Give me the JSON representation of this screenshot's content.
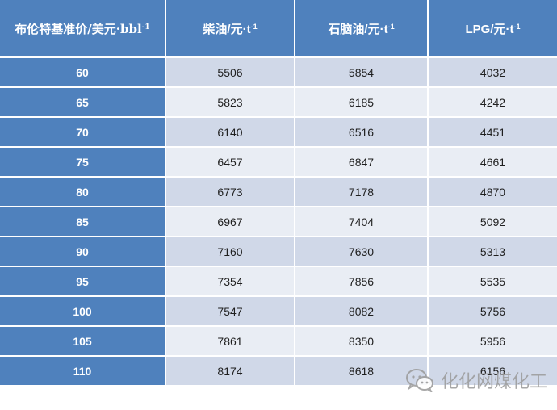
{
  "table": {
    "headers": [
      {
        "text": "布伦特基准价/美元·bbl",
        "sup": "-1"
      },
      {
        "text": "柴油/元·t",
        "sup": "-1"
      },
      {
        "text": "石脑油/元·t",
        "sup": "-1"
      },
      {
        "text": "LPG/元·t",
        "sup": "-1"
      }
    ],
    "rows": [
      [
        "60",
        "5506",
        "5854",
        "4032"
      ],
      [
        "65",
        "5823",
        "6185",
        "4242"
      ],
      [
        "70",
        "6140",
        "6516",
        "4451"
      ],
      [
        "75",
        "6457",
        "6847",
        "4661"
      ],
      [
        "80",
        "6773",
        "7178",
        "4870"
      ],
      [
        "85",
        "6967",
        "7404",
        "5092"
      ],
      [
        "90",
        "7160",
        "7630",
        "5313"
      ],
      [
        "95",
        "7354",
        "7856",
        "5535"
      ],
      [
        "100",
        "7547",
        "8082",
        "5756"
      ],
      [
        "105",
        "7861",
        "8350",
        "5956"
      ],
      [
        "110",
        "8174",
        "8618",
        "6156"
      ]
    ]
  },
  "watermark": {
    "text": "化化网煤化工",
    "icon": "wechat-icon"
  }
}
